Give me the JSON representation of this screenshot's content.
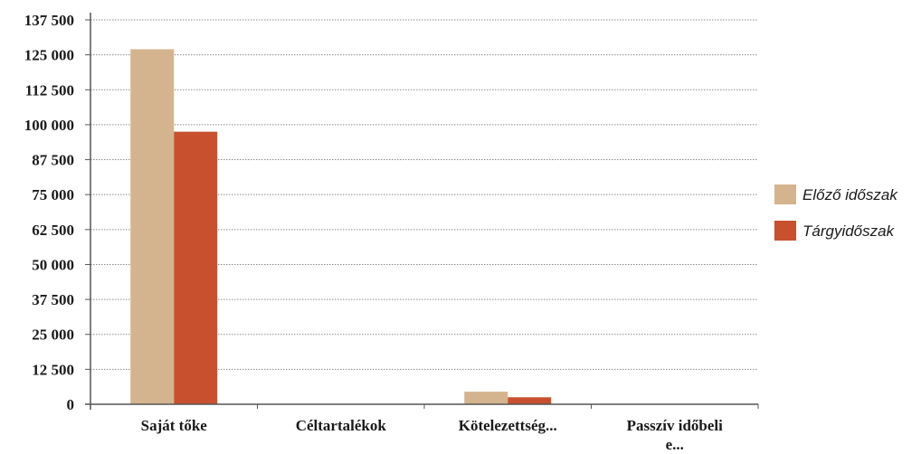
{
  "chart_data": {
    "type": "bar",
    "categories": [
      "Saját tőke",
      "Céltartalékok",
      "Kötelezettség...",
      "Passzív időbeli e..."
    ],
    "series": [
      {
        "name": "Előző időszak",
        "values": [
          127000,
          0,
          4500,
          0
        ],
        "color": "#d4b48e"
      },
      {
        "name": "Tárgyidőszak",
        "values": [
          97500,
          0,
          2500,
          0
        ],
        "color": "#c8502e"
      }
    ],
    "yticks": [
      0,
      12500,
      25000,
      37500,
      50000,
      62500,
      75000,
      87500,
      100000,
      112500,
      125000,
      137500
    ],
    "ytick_labels": [
      "0",
      "12 500",
      "25 000",
      "37 500",
      "50 000",
      "62 500",
      "75 000",
      "87 500",
      "100 000",
      "112 500",
      "125 000",
      "137 500"
    ],
    "ylim": [
      0,
      137500
    ],
    "grid": true,
    "legend_position": "right",
    "title": "",
    "xlabel": "",
    "ylabel": ""
  }
}
